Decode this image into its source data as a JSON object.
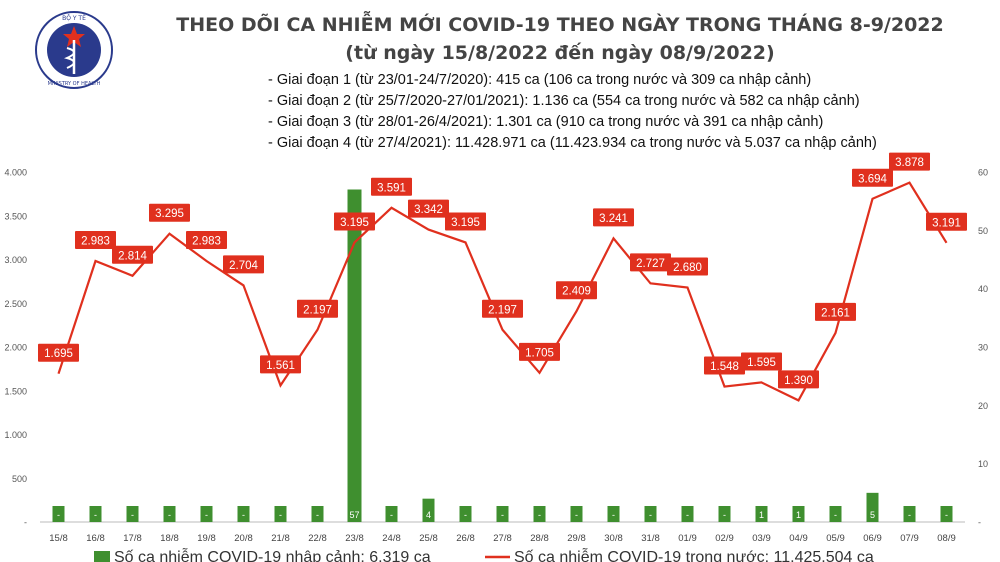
{
  "header": {
    "title": "THEO DÕI CA NHIỄM MỚI COVID-19 THEO NGÀY TRONG THÁNG 8-9/2022",
    "subtitle": "(từ ngày 15/8/2022 đến ngày 08/9/2022)",
    "notes": [
      "- Giai đoạn 1 (từ 23/01-24/7/2020): 415 ca (106 ca trong nước và 309 ca nhập cảnh)",
      "- Giai đoạn 2 (từ 25/7/2020-27/01/2021): 1.136 ca (554 ca trong nước và 582 ca nhập cảnh)",
      "- Giai đoạn 3 (từ 28/01-26/4/2021): 1.301 ca (910 ca trong nước và 391 ca nhập cảnh)",
      "- Giai đoạn 4 (từ 27/4/2021): 11.428.971 ca (11.423.934 ca trong nước và 5.037 ca nhập cảnh)"
    ]
  },
  "logo": {
    "top_text": "BỘ Y TẾ",
    "bottom_text": "MINISTRY OF HEALTH",
    "icon": "caduceus-icon"
  },
  "chart_data": {
    "type": "bar+line",
    "categories": [
      "15/8",
      "16/8",
      "17/8",
      "18/8",
      "19/8",
      "20/8",
      "21/8",
      "22/8",
      "23/8",
      "24/8",
      "25/8",
      "26/8",
      "27/8",
      "28/8",
      "29/8",
      "30/8",
      "31/8",
      "01/9",
      "02/9",
      "03/9",
      "04/9",
      "05/9",
      "06/9",
      "07/9",
      "08/9"
    ],
    "series": [
      {
        "name": "Số ca nhiễm COVID-19 nhập cảnh: 6.319 ca",
        "type": "bar",
        "axis": "right",
        "color": "#3f8f2f",
        "values": [
          0,
          0,
          0,
          0,
          0,
          0,
          0,
          0,
          57,
          0,
          4,
          0,
          0,
          0,
          0,
          0,
          0,
          0,
          0,
          1,
          1,
          0,
          5,
          0,
          0
        ],
        "labels": [
          "-",
          "-",
          "-",
          "-",
          "-",
          "-",
          "-",
          "-",
          "57",
          "-",
          "4",
          "-",
          "-",
          "-",
          "-",
          "-",
          "-",
          "-",
          "-",
          "1",
          "1",
          "-",
          "5",
          "-",
          "-"
        ]
      },
      {
        "name": "Số ca nhiễm COVID-19 trong nước: 11.425.504 ca",
        "type": "line",
        "axis": "left",
        "color": "#e0301e",
        "values": [
          1695,
          2983,
          2814,
          3295,
          2983,
          2704,
          1561,
          2197,
          3195,
          3591,
          3342,
          3195,
          2197,
          1705,
          2409,
          3241,
          2727,
          2680,
          1548,
          1595,
          1390,
          2161,
          3694,
          3878,
          3191
        ],
        "labels": [
          "1.695",
          "2.983",
          "2.814",
          "3.295",
          "2.983",
          "2.704",
          "1.561",
          "2.197",
          "3.195",
          "3.591",
          "3.342",
          "3.195",
          "2.197",
          "1.705",
          "2.409",
          "3.241",
          "2.727",
          "2.680",
          "1.548",
          "1.595",
          "1.390",
          "2.161",
          "3.694",
          "3.878",
          "3.191"
        ]
      }
    ],
    "y_left": {
      "min": 0,
      "max": 4000,
      "ticks": [
        "-",
        "500",
        "1.000",
        "1.500",
        "2.000",
        "2.500",
        "3.000",
        "3.500",
        "4.000"
      ]
    },
    "y_right": {
      "min": 0,
      "max": 60,
      "ticks": [
        "-",
        "10",
        "20",
        "30",
        "40",
        "50",
        "60"
      ]
    },
    "grid": false,
    "legend": "bottom"
  }
}
